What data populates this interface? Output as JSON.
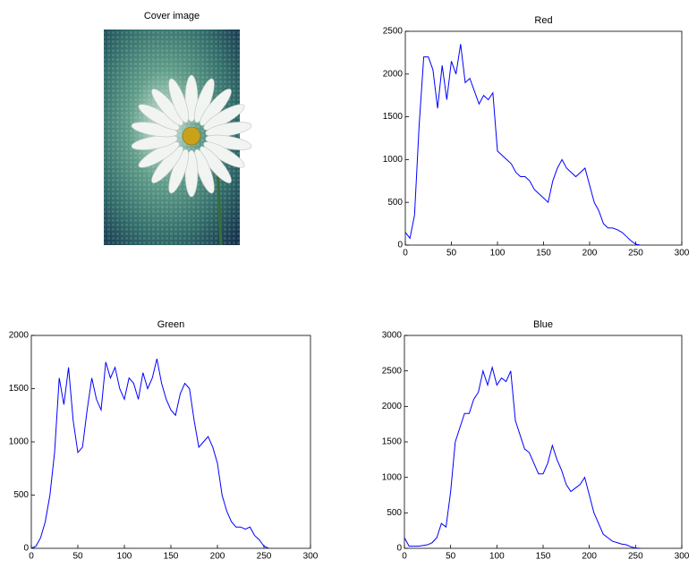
{
  "chart_data": [
    {
      "type": "image",
      "title": "Cover image"
    },
    {
      "type": "line",
      "title": "Red",
      "color": "#0000ff",
      "x": [
        0,
        5,
        10,
        15,
        20,
        25,
        30,
        35,
        40,
        45,
        50,
        55,
        60,
        65,
        70,
        75,
        80,
        85,
        90,
        95,
        100,
        105,
        110,
        115,
        120,
        125,
        130,
        135,
        140,
        145,
        150,
        155,
        160,
        165,
        170,
        175,
        180,
        185,
        190,
        195,
        200,
        205,
        210,
        215,
        220,
        225,
        230,
        235,
        240,
        245,
        250,
        255
      ],
      "values": [
        150,
        80,
        350,
        1400,
        2200,
        2200,
        2050,
        1600,
        2100,
        1700,
        2150,
        2000,
        2350,
        1900,
        1950,
        1800,
        1650,
        1750,
        1700,
        1780,
        1100,
        1050,
        1000,
        950,
        850,
        800,
        800,
        750,
        650,
        600,
        550,
        500,
        750,
        900,
        1000,
        900,
        850,
        800,
        850,
        900,
        700,
        500,
        400,
        250,
        200,
        200,
        180,
        150,
        100,
        50,
        10,
        0
      ],
      "xlim": [
        0,
        300
      ],
      "xticks": [
        0,
        50,
        100,
        150,
        200,
        250,
        300
      ],
      "ylim": [
        0,
        2500
      ],
      "yticks": [
        0,
        500,
        1000,
        1500,
        2000,
        2500
      ]
    },
    {
      "type": "line",
      "title": "Green",
      "color": "#0000ff",
      "x": [
        0,
        5,
        10,
        15,
        20,
        25,
        30,
        35,
        40,
        45,
        50,
        55,
        60,
        65,
        70,
        75,
        80,
        85,
        90,
        95,
        100,
        105,
        110,
        115,
        120,
        125,
        130,
        135,
        140,
        145,
        150,
        155,
        160,
        165,
        170,
        175,
        180,
        185,
        190,
        195,
        200,
        205,
        210,
        215,
        220,
        225,
        230,
        235,
        240,
        245,
        250,
        255
      ],
      "values": [
        0,
        20,
        100,
        250,
        500,
        900,
        1600,
        1350,
        1700,
        1200,
        900,
        950,
        1300,
        1600,
        1400,
        1300,
        1750,
        1600,
        1700,
        1500,
        1400,
        1600,
        1550,
        1400,
        1650,
        1500,
        1600,
        1780,
        1550,
        1400,
        1300,
        1250,
        1450,
        1550,
        1500,
        1200,
        950,
        1000,
        1050,
        950,
        800,
        500,
        350,
        250,
        200,
        200,
        180,
        200,
        120,
        80,
        20,
        0
      ],
      "xlim": [
        0,
        300
      ],
      "xticks": [
        0,
        50,
        100,
        150,
        200,
        250,
        300
      ],
      "ylim": [
        0,
        2000
      ],
      "yticks": [
        0,
        500,
        1000,
        1500,
        2000
      ]
    },
    {
      "type": "line",
      "title": "Blue",
      "color": "#0000ff",
      "x": [
        0,
        5,
        10,
        15,
        20,
        25,
        30,
        35,
        40,
        45,
        50,
        55,
        60,
        65,
        70,
        75,
        80,
        85,
        90,
        95,
        100,
        105,
        110,
        115,
        120,
        125,
        130,
        135,
        140,
        145,
        150,
        155,
        160,
        165,
        170,
        175,
        180,
        185,
        190,
        195,
        200,
        205,
        210,
        215,
        220,
        225,
        230,
        235,
        240,
        245,
        250,
        255
      ],
      "values": [
        150,
        30,
        30,
        30,
        40,
        50,
        80,
        150,
        350,
        300,
        800,
        1500,
        1700,
        1900,
        1900,
        2100,
        2200,
        2500,
        2300,
        2550,
        2300,
        2400,
        2350,
        2500,
        1800,
        1600,
        1400,
        1350,
        1200,
        1050,
        1050,
        1200,
        1450,
        1250,
        1100,
        900,
        800,
        850,
        900,
        1000,
        750,
        500,
        350,
        200,
        150,
        100,
        80,
        60,
        50,
        20,
        5,
        0
      ],
      "xlim": [
        0,
        300
      ],
      "xticks": [
        0,
        50,
        100,
        150,
        200,
        250,
        300
      ],
      "ylim": [
        0,
        3000
      ],
      "yticks": [
        0,
        500,
        1000,
        1500,
        2000,
        2500,
        3000
      ]
    }
  ]
}
